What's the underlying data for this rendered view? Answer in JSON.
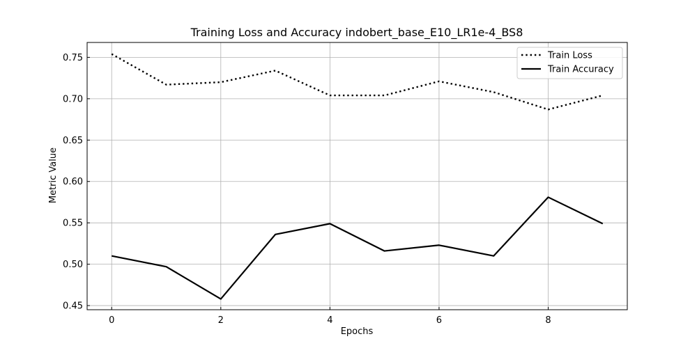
{
  "chart_data": {
    "type": "line",
    "title": "Training Loss and Accuracy indobert_base_E10_LR1e-4_BS8",
    "xlabel": "Epochs",
    "ylabel": "Metric Value",
    "xlim": [
      -0.45,
      9.45
    ],
    "ylim": [
      0.445,
      0.768
    ],
    "xticks": [
      0,
      2,
      4,
      6,
      8
    ],
    "yticks": [
      0.45,
      0.5,
      0.55,
      0.6,
      0.65,
      0.7,
      0.75
    ],
    "xtick_labels": [
      "0",
      "2",
      "4",
      "6",
      "8"
    ],
    "ytick_labels": [
      "0.45",
      "0.50",
      "0.55",
      "0.60",
      "0.65",
      "0.70",
      "0.75"
    ],
    "grid": true,
    "legend_position": "top-right",
    "x": [
      0,
      1,
      2,
      3,
      4,
      5,
      6,
      7,
      8,
      9
    ],
    "series": [
      {
        "name": "Train Loss",
        "style": "dotted",
        "color": "#000000",
        "values": [
          0.754,
          0.717,
          0.72,
          0.734,
          0.704,
          0.704,
          0.721,
          0.708,
          0.687,
          0.704
        ]
      },
      {
        "name": "Train Accuracy",
        "style": "solid",
        "color": "#000000",
        "values": [
          0.51,
          0.497,
          0.458,
          0.536,
          0.549,
          0.516,
          0.523,
          0.51,
          0.581,
          0.549
        ]
      }
    ]
  }
}
